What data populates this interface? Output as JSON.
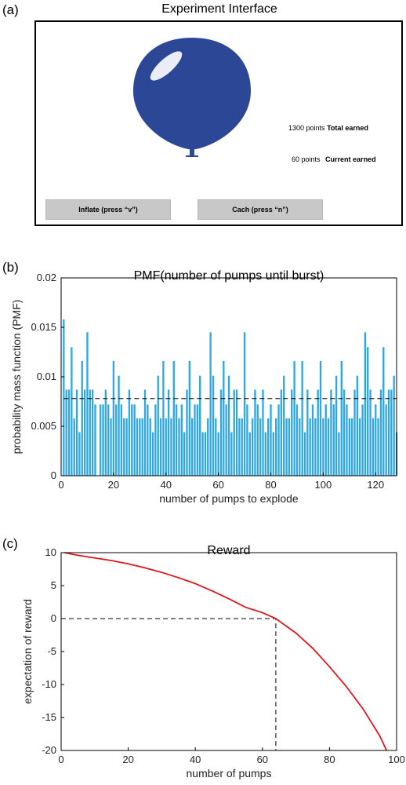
{
  "panels": {
    "a": {
      "label": "(a)",
      "title": "Experiment Interface"
    },
    "b": {
      "label": "(b)"
    },
    "c": {
      "label": "(c)"
    }
  },
  "experiment": {
    "total_value": "1300 points",
    "total_label": "Total earned",
    "current_value": "60 points",
    "current_label": "Current earned",
    "inflate_label": "Inflate (press “v”)",
    "cash_label": "Cach (press “n”)",
    "balloon_color": "#2b4796"
  },
  "chart_data": [
    {
      "type": "bar",
      "title": "PMF(number of pumps until burst)",
      "xlabel": "number of pumps to explode",
      "ylabel": "probability mass function (PMF)",
      "xlim": [
        0,
        128
      ],
      "ylim": [
        0,
        0.02
      ],
      "xticks": [
        0,
        20,
        40,
        60,
        80,
        100,
        120
      ],
      "yticks": [
        0,
        0.005,
        0.01,
        0.015,
        0.02
      ],
      "ytick_labels": [
        "0",
        "0.005",
        "0.01",
        "0.015",
        "0.02"
      ],
      "x": [
        1,
        2,
        3,
        4,
        5,
        6,
        7,
        8,
        9,
        10,
        11,
        12,
        13,
        14,
        15,
        16,
        17,
        18,
        19,
        20,
        21,
        22,
        23,
        24,
        25,
        26,
        27,
        28,
        29,
        30,
        31,
        32,
        33,
        34,
        35,
        36,
        37,
        38,
        39,
        40,
        41,
        42,
        43,
        44,
        45,
        46,
        47,
        48,
        49,
        50,
        51,
        52,
        53,
        54,
        55,
        56,
        57,
        58,
        59,
        60,
        61,
        62,
        63,
        64,
        65,
        66,
        67,
        68,
        69,
        70,
        71,
        72,
        73,
        74,
        75,
        76,
        77,
        78,
        79,
        80,
        81,
        82,
        83,
        84,
        85,
        86,
        87,
        88,
        89,
        90,
        91,
        92,
        93,
        94,
        95,
        96,
        97,
        98,
        99,
        100,
        101,
        102,
        103,
        104,
        105,
        106,
        107,
        108,
        109,
        110,
        111,
        112,
        113,
        114,
        115,
        116,
        117,
        118,
        119,
        120,
        121,
        122,
        123,
        124,
        125,
        126,
        127,
        128
      ],
      "values": [
        0.0158,
        0.0087,
        0.0087,
        0.013,
        0.0058,
        0.0087,
        0.0044,
        0.0116,
        0.0087,
        0.0145,
        0.0087,
        0.0087,
        0.0072,
        0.0,
        0.0072,
        0.0072,
        0.0087,
        0.0072,
        0.0058,
        0.0116,
        0.0072,
        0.0101,
        0.0072,
        0.0058,
        0.0058,
        0.0087,
        0.0072,
        0.0072,
        0.0058,
        0.0058,
        0.0058,
        0.0087,
        0.0072,
        0.0058,
        0.0044,
        0.0072,
        0.0101,
        0.0058,
        0.0116,
        0.0058,
        0.0087,
        0.0058,
        0.0116,
        0.0072,
        0.0058,
        0.0072,
        0.0044,
        0.0087,
        0.0116,
        0.0058,
        0.0072,
        0.0072,
        0.0101,
        0.0044,
        0.0044,
        0.0058,
        0.0145,
        0.0101,
        0.0058,
        0.0044,
        0.0087,
        0.0116,
        0.0072,
        0.0101,
        0.0044,
        0.0087,
        0.0087,
        0.0058,
        0.0058,
        0.0145,
        0.0072,
        0.0044,
        0.0058,
        0.0087,
        0.0072,
        0.0058,
        0.0087,
        0.0044,
        0.0058,
        0.0072,
        0.0044,
        0.0058,
        0.0072,
        0.0087,
        0.0101,
        0.0058,
        0.0058,
        0.0087,
        0.0116,
        0.0072,
        0.0058,
        0.0116,
        0.0044,
        0.0087,
        0.0058,
        0.0072,
        0.0058,
        0.0087,
        0.0116,
        0.0058,
        0.0072,
        0.0058,
        0.0087,
        0.0072,
        0.0101,
        0.0044,
        0.0116,
        0.0087,
        0.0072,
        0.0058,
        0.0058,
        0.0087,
        0.0101,
        0.0058,
        0.0072,
        0.0145,
        0.013,
        0.0087,
        0.0058,
        0.0072,
        0.0058,
        0.0087,
        0.013,
        0.0072,
        0.0087,
        0.0087,
        0.0101,
        0.0044
      ],
      "mean_line": 0.0078,
      "bar_color": "#2fa8e0",
      "grid": false
    },
    {
      "type": "line",
      "title": "Reward",
      "xlabel": "number of pumps",
      "ylabel": "expectation of reward",
      "xlim": [
        0,
        100
      ],
      "ylim": [
        -20,
        10
      ],
      "xticks": [
        0,
        20,
        40,
        60,
        80,
        100
      ],
      "yticks": [
        -20,
        -15,
        -10,
        -5,
        0,
        5,
        10
      ],
      "x": [
        1,
        5,
        10,
        15,
        20,
        25,
        30,
        35,
        40,
        45,
        50,
        55,
        60,
        64,
        70,
        75,
        80,
        85,
        90,
        95,
        97
      ],
      "values": [
        10.0,
        9.6,
        9.2,
        8.8,
        8.3,
        7.7,
        7.0,
        6.2,
        5.3,
        4.2,
        3.0,
        1.7,
        0.9,
        0.0,
        -2.2,
        -4.5,
        -7.3,
        -10.3,
        -13.7,
        -17.8,
        -20.0
      ],
      "break_even": {
        "x": 64,
        "y": 0
      },
      "line_color": "#e3141a",
      "grid": false
    }
  ]
}
